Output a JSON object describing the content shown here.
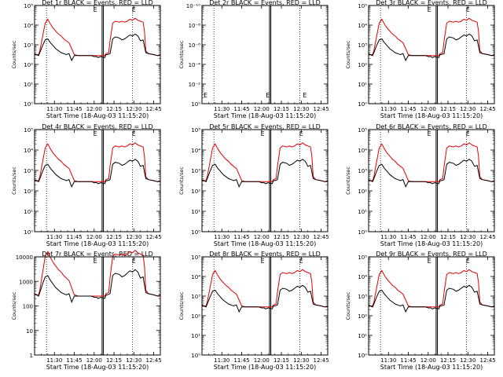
{
  "figure": {
    "layout": "3x3 grid of detector light curves",
    "xlabel": "Start Time (18-Aug-03 11:15:20)",
    "ylabel": "Counts/sec",
    "colors": {
      "events": "#000000",
      "lld": "#e00000",
      "axes": "#000000",
      "background": "#ffffff"
    }
  },
  "chart_data": [
    {
      "type": "line",
      "title": "Det 1r BLACK = Events, RED = LLD",
      "x_ticks": [
        "11:30",
        "11:45",
        "12:00",
        "12:15",
        "12:30",
        "12:45"
      ],
      "y_ticks": [
        "10⁰",
        "10¹",
        "10²",
        "10³",
        "10⁴",
        "10⁵"
      ],
      "ylim": [
        1,
        100000
      ],
      "empty": false,
      "marker": "E",
      "series": [
        {
          "name": "Events",
          "color": "#000000"
        },
        {
          "name": "LLD",
          "color": "#e00000"
        }
      ]
    },
    {
      "type": "line",
      "title": "Det 2r BLACK = Events, RED = LLD",
      "x_ticks": [
        "11:30",
        "11:45",
        "12:00",
        "12:15",
        "12:30",
        "12:45"
      ],
      "y_ticks": [
        "10⁰",
        "10⁻²",
        "10⁻⁴",
        "10⁻⁶",
        "10⁻⁸",
        "10⁻¹⁰"
      ],
      "ylim": [
        1e-10,
        1
      ],
      "empty": true,
      "marker": "E",
      "series": []
    },
    {
      "type": "line",
      "title": "Det 3r BLACK = Events, RED = LLD",
      "x_ticks": [
        "11:30",
        "11:45",
        "12:00",
        "12:15",
        "12:30",
        "12:45"
      ],
      "y_ticks": [
        "10⁰",
        "10¹",
        "10²",
        "10³",
        "10⁴",
        "10⁵"
      ],
      "ylim": [
        1,
        100000
      ],
      "empty": false,
      "marker": "E",
      "series": [
        {
          "name": "Events",
          "color": "#000000"
        },
        {
          "name": "LLD",
          "color": "#e00000"
        }
      ]
    },
    {
      "type": "line",
      "title": "Det 4r BLACK = Events, RED = LLD",
      "x_ticks": [
        "11:30",
        "11:45",
        "12:00",
        "12:15",
        "12:30",
        "12:45"
      ],
      "y_ticks": [
        "10⁰",
        "10¹",
        "10²",
        "10³",
        "10⁴",
        "10⁵"
      ],
      "ylim": [
        1,
        100000
      ],
      "empty": false,
      "marker": "E",
      "series": [
        {
          "name": "Events",
          "color": "#000000"
        },
        {
          "name": "LLD",
          "color": "#e00000"
        }
      ]
    },
    {
      "type": "line",
      "title": "Det 5r BLACK = Events, RED = LLD",
      "x_ticks": [
        "11:30",
        "11:45",
        "12:00",
        "12:15",
        "12:30",
        "12:45"
      ],
      "y_ticks": [
        "10⁰",
        "10¹",
        "10²",
        "10³",
        "10⁴",
        "10⁵"
      ],
      "ylim": [
        1,
        100000
      ],
      "empty": false,
      "marker": "E",
      "series": [
        {
          "name": "Events",
          "color": "#000000"
        },
        {
          "name": "LLD",
          "color": "#e00000"
        }
      ]
    },
    {
      "type": "line",
      "title": "Det 6r BLACK = Events, RED = LLD",
      "x_ticks": [
        "11:30",
        "11:45",
        "12:00",
        "12:15",
        "12:30",
        "12:45"
      ],
      "y_ticks": [
        "10⁰",
        "10¹",
        "10²",
        "10³",
        "10⁴",
        "10⁵"
      ],
      "ylim": [
        1,
        100000
      ],
      "empty": false,
      "marker": "E",
      "series": [
        {
          "name": "Events",
          "color": "#000000"
        },
        {
          "name": "LLD",
          "color": "#e00000"
        }
      ]
    },
    {
      "type": "line",
      "title": "Det 7r BLACK = Events, RED = LLD",
      "x_ticks": [
        "11:30",
        "11:45",
        "12:00",
        "12:15",
        "12:30",
        "12:45"
      ],
      "y_ticks": [
        "1",
        "10",
        "100",
        "1000",
        "10000"
      ],
      "ylim": [
        1,
        10000
      ],
      "empty": false,
      "marker": "E",
      "series": [
        {
          "name": "Events",
          "color": "#000000"
        },
        {
          "name": "LLD",
          "color": "#e00000"
        }
      ]
    },
    {
      "type": "line",
      "title": "Det 8r BLACK = Events, RED = LLD",
      "x_ticks": [
        "11:30",
        "11:45",
        "12:00",
        "12:15",
        "12:30",
        "12:45"
      ],
      "y_ticks": [
        "10⁰",
        "10¹",
        "10²",
        "10³",
        "10⁴",
        "10⁵"
      ],
      "ylim": [
        1,
        100000
      ],
      "empty": false,
      "marker": "E",
      "series": [
        {
          "name": "Events",
          "color": "#000000"
        },
        {
          "name": "LLD",
          "color": "#e00000"
        }
      ]
    },
    {
      "type": "line",
      "title": "Det 9r BLACK = Events, RED = LLD",
      "x_ticks": [
        "11:30",
        "11:45",
        "12:00",
        "12:15",
        "12:30",
        "12:45"
      ],
      "y_ticks": [
        "10⁰",
        "10¹",
        "10²",
        "10³",
        "10⁴",
        "10⁵"
      ],
      "ylim": [
        1,
        100000
      ],
      "empty": false,
      "marker": "E",
      "series": [
        {
          "name": "Events",
          "color": "#000000"
        },
        {
          "name": "LLD",
          "color": "#e00000"
        }
      ]
    }
  ],
  "shape": {
    "time_start_min": 0,
    "time_end_min": 95,
    "x_tick_minutes": [
      15,
      30,
      45,
      60,
      75,
      90
    ],
    "dotted_minutes": [
      9,
      74
    ],
    "gap_minutes": [
      51,
      52
    ],
    "marker_minute": 47,
    "events_log10": [
      [
        0,
        2.55
      ],
      [
        3,
        2.45
      ],
      [
        4,
        2.6
      ],
      [
        6,
        2.95
      ],
      [
        8,
        3.25
      ],
      [
        10,
        3.3
      ],
      [
        12,
        3.1
      ],
      [
        14,
        2.95
      ],
      [
        16,
        2.8
      ],
      [
        18,
        2.7
      ],
      [
        20,
        2.6
      ],
      [
        22,
        2.55
      ],
      [
        24,
        2.5
      ],
      [
        26,
        2.55
      ],
      [
        28,
        2.2
      ],
      [
        30,
        2.45
      ],
      [
        33,
        2.45
      ],
      [
        40,
        2.45
      ],
      [
        43,
        2.45
      ],
      [
        45,
        2.4
      ],
      [
        47,
        2.4
      ],
      [
        48,
        2.35
      ],
      [
        50,
        2.4
      ],
      [
        53,
        2.35
      ],
      [
        54,
        2.5
      ],
      [
        55,
        2.5
      ],
      [
        57,
        2.55
      ],
      [
        59,
        3.3
      ],
      [
        61,
        3.4
      ],
      [
        64,
        3.35
      ],
      [
        66,
        3.25
      ],
      [
        68,
        3.3
      ],
      [
        70,
        3.4
      ],
      [
        72,
        3.5
      ],
      [
        74,
        3.45
      ],
      [
        76,
        3.55
      ],
      [
        78,
        3.45
      ],
      [
        80,
        3.2
      ],
      [
        82,
        3.25
      ],
      [
        84,
        2.6
      ],
      [
        86,
        2.55
      ],
      [
        90,
        2.5
      ],
      [
        93,
        2.45
      ],
      [
        95,
        2.5
      ]
    ],
    "lld_log10": [
      [
        0,
        2.5
      ],
      [
        3,
        2.5
      ],
      [
        4,
        2.7
      ],
      [
        6,
        3.4
      ],
      [
        8,
        4.1
      ],
      [
        10,
        4.3
      ],
      [
        12,
        4.05
      ],
      [
        14,
        3.85
      ],
      [
        16,
        3.7
      ],
      [
        18,
        3.55
      ],
      [
        20,
        3.45
      ],
      [
        22,
        3.3
      ],
      [
        24,
        3.2
      ],
      [
        26,
        3.1
      ],
      [
        28,
        2.8
      ],
      [
        30,
        2.5
      ],
      [
        33,
        2.45
      ],
      [
        40,
        2.45
      ],
      [
        45,
        2.45
      ],
      [
        48,
        2.45
      ],
      [
        50,
        2.45
      ],
      [
        53,
        2.45
      ],
      [
        54,
        2.55
      ],
      [
        56,
        2.6
      ],
      [
        57,
        3.2
      ],
      [
        59,
        4.1
      ],
      [
        61,
        4.2
      ],
      [
        64,
        4.15
      ],
      [
        66,
        4.2
      ],
      [
        68,
        4.15
      ],
      [
        70,
        4.2
      ],
      [
        72,
        4.3
      ],
      [
        74,
        4.25
      ],
      [
        76,
        4.35
      ],
      [
        78,
        4.25
      ],
      [
        80,
        4.2
      ],
      [
        82,
        4.15
      ],
      [
        83,
        3.7
      ],
      [
        84,
        2.7
      ],
      [
        86,
        2.55
      ],
      [
        90,
        2.5
      ],
      [
        93,
        2.45
      ],
      [
        95,
        2.45
      ]
    ]
  }
}
